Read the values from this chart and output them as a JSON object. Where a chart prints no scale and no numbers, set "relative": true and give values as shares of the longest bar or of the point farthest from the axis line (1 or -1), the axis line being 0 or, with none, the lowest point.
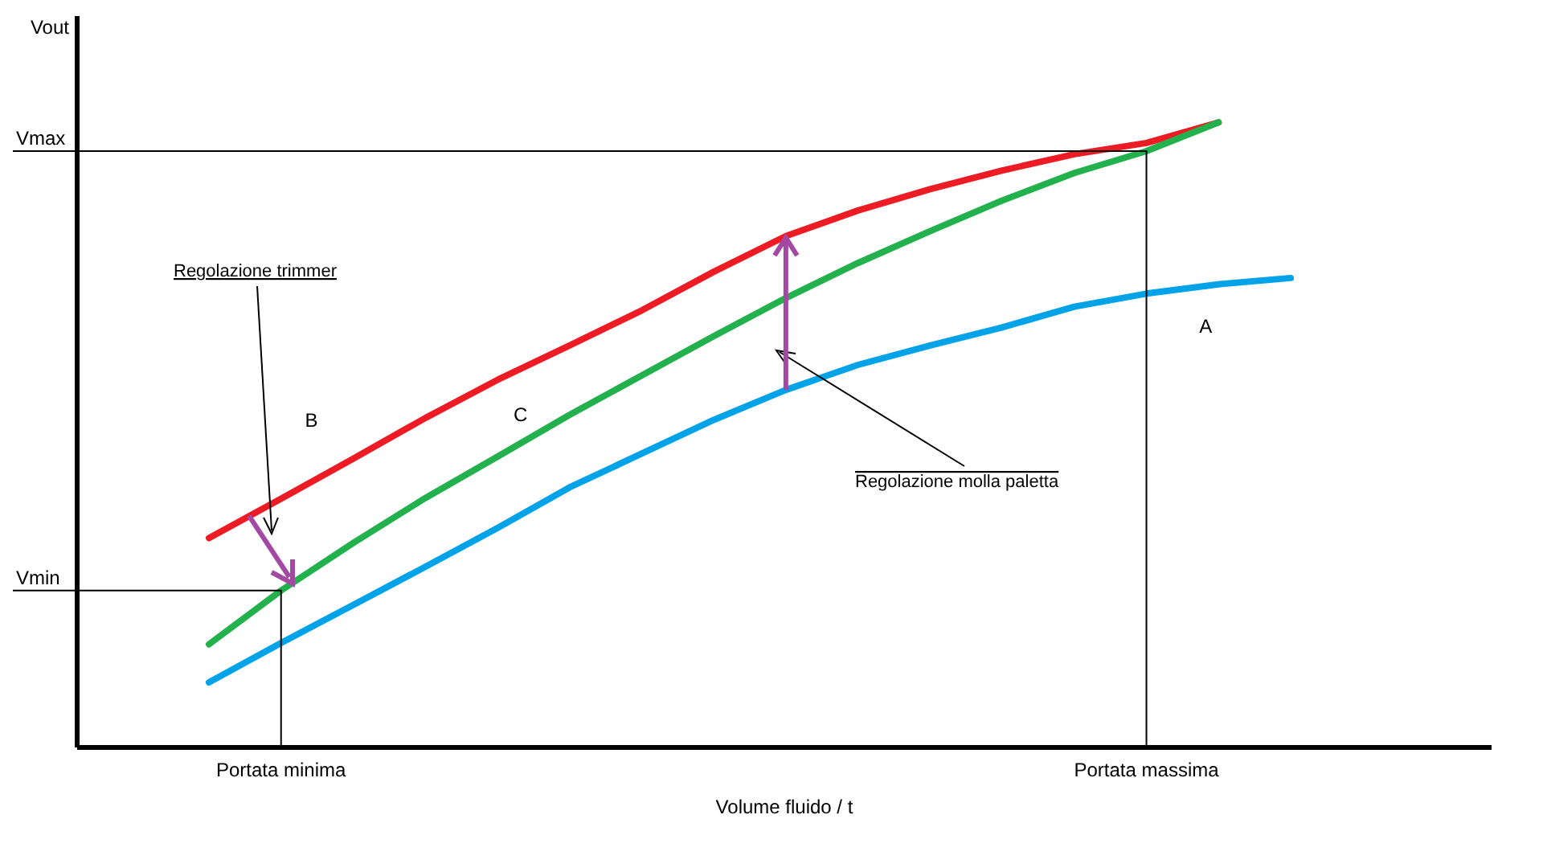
{
  "chart_data": {
    "type": "line",
    "relative": true,
    "xlabel": "Volume fluido / t",
    "categories": [
      null,
      null,
      null,
      null,
      null,
      null,
      null,
      null,
      null,
      null,
      null,
      null,
      null,
      null,
      null,
      null
    ],
    "series": [
      {
        "name": "A",
        "color": "#00a2e8",
        "values": [
          0.104,
          0.167,
          0.228,
          0.289,
          0.351,
          0.416,
          0.47,
          0.524,
          0.572,
          0.612,
          0.643,
          0.672,
          0.705,
          0.726,
          0.741,
          0.751
        ]
      },
      {
        "name": "B",
        "color": "#ed1c24",
        "values": [
          0.335,
          0.398,
          0.462,
          0.527,
          0.588,
          0.643,
          0.699,
          0.761,
          0.818,
          0.859,
          0.893,
          0.923,
          0.949,
          0.967,
          1,
          null
        ]
      },
      {
        "name": "C",
        "color": "#22b14c",
        "values": [
          0.165,
          0.251,
          0.327,
          0.399,
          0.465,
          0.532,
          0.595,
          0.658,
          0.719,
          0.775,
          0.826,
          0.875,
          0.919,
          0.954,
          1,
          null
        ]
      }
    ],
    "annotations": [
      "Vmax",
      "Vmin",
      "Portata minima",
      "Portata massima",
      "Regolazione trimmer",
      "Regolazione molla paletta",
      "Vout"
    ]
  }
}
